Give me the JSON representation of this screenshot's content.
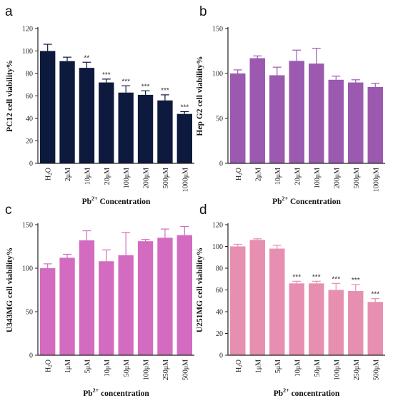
{
  "chart_data": [
    {
      "type": "bar",
      "panel_label": "a",
      "bar_color": "#0d1a3d",
      "categories": [
        "H2O",
        "2μM",
        "10μM",
        "20μM",
        "100μM",
        "200μM",
        "500μM",
        "1000μM"
      ],
      "values": [
        100,
        91,
        85,
        72,
        63,
        61,
        56,
        44
      ],
      "errors": [
        6,
        3.5,
        5,
        3,
        6,
        3.5,
        5,
        2
      ],
      "significance": [
        "",
        "",
        "**",
        "***",
        "***",
        "***",
        "***",
        "***"
      ],
      "ylabel": "PC12 cell viability%",
      "xlabel_prefix": "Pb",
      "xlabel_sup": "2+",
      "xlabel_suffix": " Concentration",
      "ylim": [
        0,
        120
      ],
      "yticks": [
        0,
        20,
        40,
        60,
        80,
        100,
        120
      ]
    },
    {
      "type": "bar",
      "panel_label": "b",
      "bar_color": "#9b59b0",
      "categories": [
        "H2O",
        "2μM",
        "10μM",
        "20μM",
        "100μM",
        "200μM",
        "500μM",
        "1000μM"
      ],
      "values": [
        100,
        117,
        98,
        114,
        111,
        93,
        90,
        85
      ],
      "errors": [
        4,
        2.5,
        9,
        12,
        17,
        4,
        3,
        4
      ],
      "significance": [
        "",
        "",
        "",
        "",
        "",
        "",
        "",
        ""
      ],
      "ylabel": "Hep G2 cell viability%",
      "xlabel_prefix": "Pb",
      "xlabel_sup": "2+",
      "xlabel_suffix": " Concentration",
      "ylim": [
        0,
        150
      ],
      "yticks": [
        0,
        50,
        100,
        150
      ]
    },
    {
      "type": "bar",
      "panel_label": "c",
      "bar_color": "#d36cc0",
      "categories": [
        "H2O",
        "1μM",
        "5μM",
        "10μM",
        "50μM",
        "100μM",
        "250μM",
        "500μM"
      ],
      "values": [
        100,
        112,
        132,
        108,
        115,
        131,
        135,
        138
      ],
      "errors": [
        5,
        4,
        11,
        13,
        26,
        2,
        10,
        10
      ],
      "significance": [
        "",
        "",
        "",
        "",
        "",
        "",
        "",
        ""
      ],
      "ylabel": "U343MG cell viability%",
      "xlabel_prefix": "Pb",
      "xlabel_sup": "2+",
      "xlabel_suffix": " concentration",
      "ylim": [
        0,
        150
      ],
      "yticks": [
        0,
        50,
        100,
        150
      ]
    },
    {
      "type": "bar",
      "panel_label": "d",
      "bar_color": "#e78fb0",
      "categories": [
        "H2O",
        "1μM",
        "5μM",
        "10μM",
        "50μM",
        "100μM",
        "250μM",
        "500μM"
      ],
      "values": [
        100,
        106,
        98,
        66,
        66,
        60,
        59,
        49
      ],
      "errors": [
        2,
        1,
        3,
        2,
        2,
        6,
        6,
        3
      ],
      "significance": [
        "",
        "",
        "",
        "***",
        "***",
        "***",
        "***",
        "***"
      ],
      "ylabel": "U251MG cell viability%",
      "xlabel_prefix": "Pb",
      "xlabel_sup": "2+",
      "xlabel_suffix": " concentration",
      "ylim": [
        0,
        120
      ],
      "yticks": [
        0,
        20,
        40,
        60,
        80,
        100,
        120
      ]
    }
  ]
}
